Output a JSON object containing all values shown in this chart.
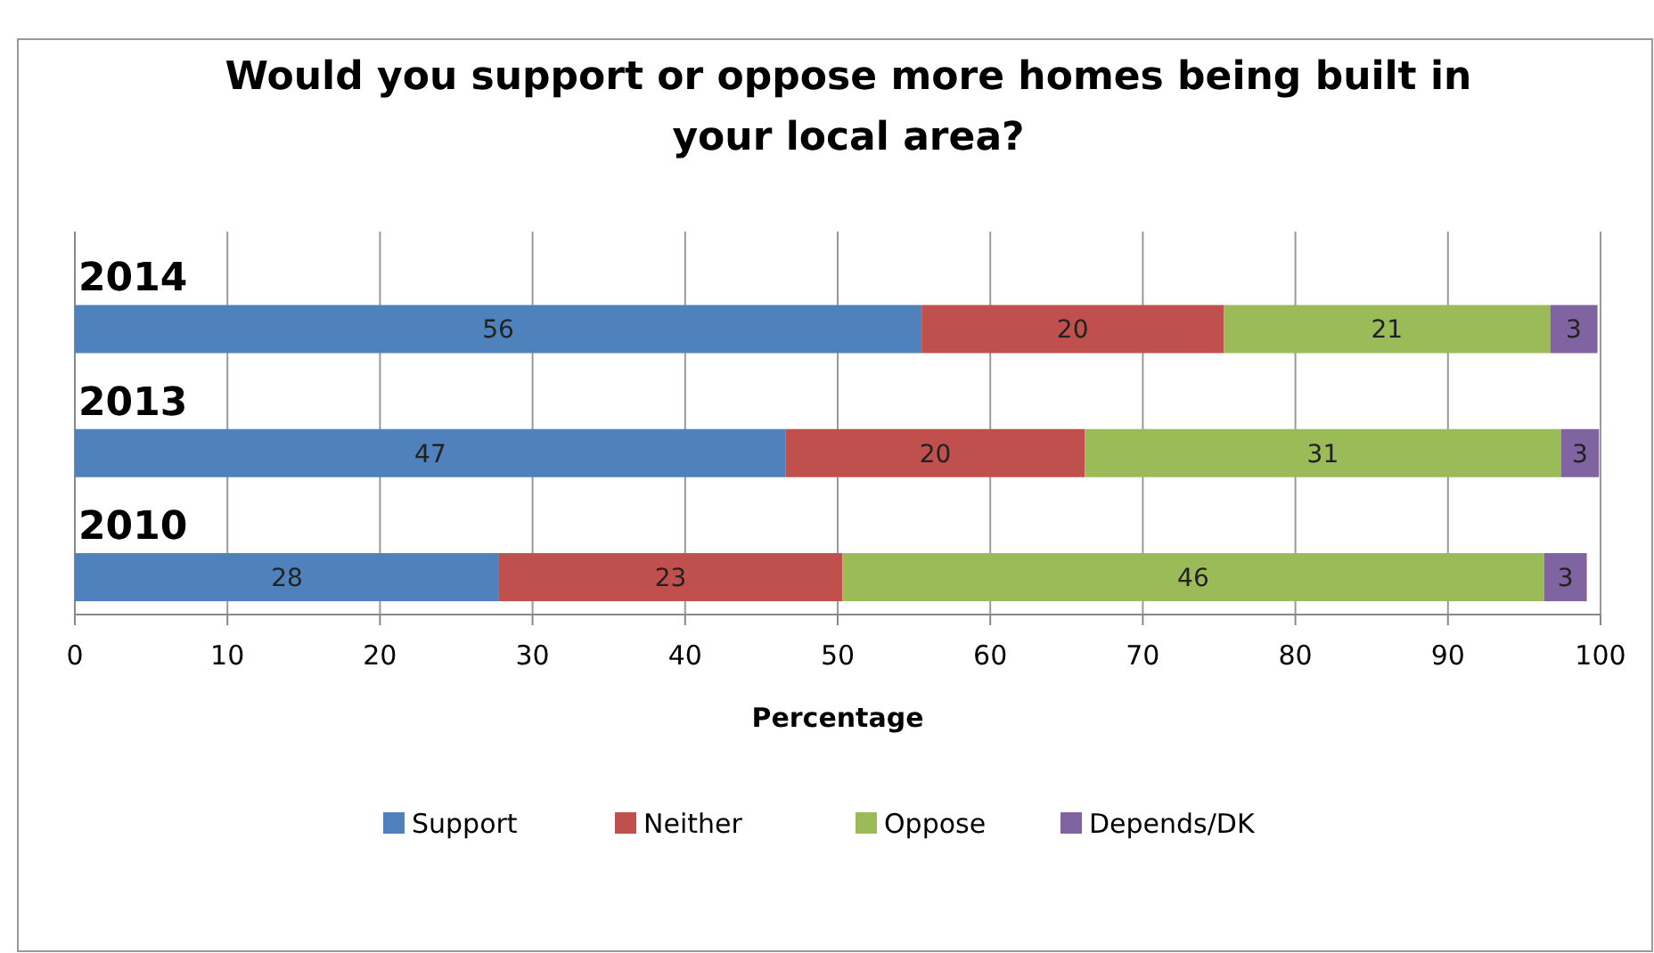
{
  "chart_data": {
    "type": "bar",
    "orientation": "horizontal",
    "stacked": true,
    "title": "Would you support or oppose more homes being built in your local area?",
    "xlabel": "Percentage",
    "categories": [
      "2014",
      "2013",
      "2010"
    ],
    "series": [
      {
        "name": "Support",
        "color": "#4f81bd",
        "values": [
          55.5,
          46.6,
          27.8
        ],
        "value_labels": [
          "56",
          "47",
          "28"
        ]
      },
      {
        "name": "Neither",
        "color": "#c0504d",
        "values": [
          19.8,
          19.6,
          22.5
        ],
        "value_labels": [
          "20",
          "20",
          "23"
        ]
      },
      {
        "name": "Oppose",
        "color": "#9bbb59",
        "values": [
          21.4,
          31.2,
          46.0
        ],
        "value_labels": [
          "21",
          "31",
          "46"
        ]
      },
      {
        "name": "Depends/DK",
        "color": "#8064a2",
        "values": [
          3.1,
          2.5,
          2.8
        ],
        "value_labels": [
          "3",
          "3",
          "3"
        ]
      }
    ],
    "xlim": [
      0,
      100
    ],
    "xticks": [
      0,
      10,
      20,
      30,
      40,
      50,
      60,
      70,
      80,
      90,
      100
    ],
    "grid": "x",
    "legend": "bottom"
  }
}
